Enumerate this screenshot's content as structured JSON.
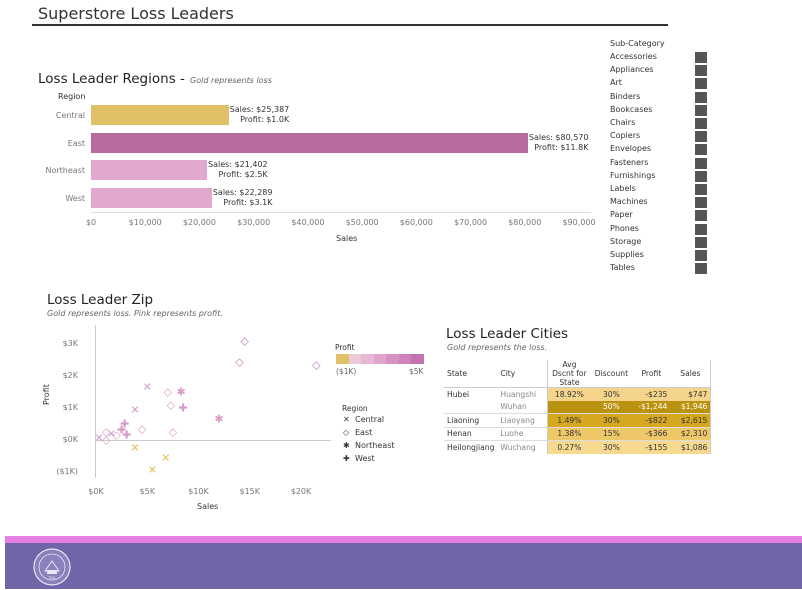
{
  "dashboard": {
    "title": "Superstore Loss Leaders"
  },
  "regions_chart": {
    "title": "Loss Leader Regions -",
    "subtitle": "Gold represents loss",
    "axis_header": "Region",
    "xlabel": "Sales",
    "ticks": [
      "$0",
      "$10,000",
      "$20,000",
      "$30,000",
      "$40,000",
      "$50,000",
      "$60,000",
      "$70,000",
      "$80,000",
      "$90,000"
    ],
    "rows": [
      {
        "region": "Central",
        "sales_label": "Sales: $25,387",
        "profit_label": "Profit: $1.0K"
      },
      {
        "region": "East",
        "sales_label": "Sales: $80,570",
        "profit_label": "Profit: $11.8K"
      },
      {
        "region": "Northeast",
        "sales_label": "Sales: $21,402",
        "profit_label": "Profit: $2.5K"
      },
      {
        "region": "West",
        "sales_label": "Sales: $22,289",
        "profit_label": "Profit: $3.1K"
      }
    ]
  },
  "subcategory_legend": {
    "title": "Sub-Category",
    "items": [
      "Accessories",
      "Appliances",
      "Art",
      "Binders",
      "Bookcases",
      "Chairs",
      "Copiers",
      "Envelopes",
      "Fasteners",
      "Furnishings",
      "Labels",
      "Machines",
      "Paper",
      "Phones",
      "Storage",
      "Supplies",
      "Tables"
    ],
    "swatch_color": "#555555"
  },
  "zip_chart": {
    "title": "Loss Leader Zip",
    "subtitle": "Gold represents loss.  Pink represents profit.",
    "ylabel": "Profit",
    "xlabel": "Sales",
    "yticks": [
      "$3K",
      "$2K",
      "$1K",
      "$0K",
      "($1K)"
    ],
    "xticks": [
      "$0K",
      "$5K",
      "$10K",
      "$15K",
      "$20K"
    ],
    "profit_legend": {
      "title": "Profit",
      "min": "($1K)",
      "max": "$5K"
    },
    "region_legend": {
      "title": "Region",
      "items": [
        {
          "symbol": "✕",
          "label": "Central"
        },
        {
          "symbol": "◇",
          "label": "East"
        },
        {
          "symbol": "✱",
          "label": "Northeast"
        },
        {
          "symbol": "✚",
          "label": "West"
        }
      ]
    }
  },
  "chart_data": [
    {
      "type": "bar",
      "title": "Loss Leader Regions -",
      "subtitle": "Gold represents loss",
      "categories": [
        "Central",
        "East",
        "Northeast",
        "West"
      ],
      "series": [
        {
          "name": "Sales",
          "values": [
            25387,
            80570,
            21402,
            22289
          ]
        },
        {
          "name": "Profit",
          "values": [
            1000,
            11800,
            2500,
            3100
          ]
        }
      ],
      "xlabel": "Sales",
      "ylabel": "Region",
      "xlim": [
        0,
        90000
      ],
      "colors": [
        "#e2c068",
        "#b76a9c",
        "#e1aacc",
        "#e1aacc"
      ]
    },
    {
      "type": "scatter",
      "title": "Loss Leader Zip",
      "subtitle": "Gold represents loss.  Pink represents profit.",
      "xlabel": "Sales",
      "ylabel": "Profit",
      "xlim": [
        0,
        22000
      ],
      "ylim": [
        -1200,
        3400
      ],
      "points": [
        {
          "region": "East",
          "x": 14500,
          "y": 3100,
          "c": "#c678b2"
        },
        {
          "region": "East",
          "x": 14000,
          "y": 2450,
          "c": "#c678b2"
        },
        {
          "region": "East",
          "x": 21500,
          "y": 2350,
          "c": "#c678b2"
        },
        {
          "region": "Central",
          "x": 5000,
          "y": 1650,
          "c": "#d79cc8"
        },
        {
          "region": "East",
          "x": 7000,
          "y": 1500,
          "c": "#d79cc8"
        },
        {
          "region": "Northeast",
          "x": 8300,
          "y": 1500,
          "c": "#d79cc8"
        },
        {
          "region": "East",
          "x": 7300,
          "y": 1100,
          "c": "#d79cc8"
        },
        {
          "region": "West",
          "x": 8500,
          "y": 1000,
          "c": "#d79cc8"
        },
        {
          "region": "Central",
          "x": 3800,
          "y": 950,
          "c": "#d79cc8"
        },
        {
          "region": "Northeast",
          "x": 12000,
          "y": 650,
          "c": "#d79cc8"
        },
        {
          "region": "West",
          "x": 2800,
          "y": 500,
          "c": "#d79cc8"
        },
        {
          "region": "West",
          "x": 2500,
          "y": 300,
          "c": "#d79cc8"
        },
        {
          "region": "East",
          "x": 4500,
          "y": 350,
          "c": "#d79cc8"
        },
        {
          "region": "East",
          "x": 7500,
          "y": 250,
          "c": "#d79cc8"
        },
        {
          "region": "East",
          "x": 1000,
          "y": 250,
          "c": "#d79cc8"
        },
        {
          "region": "Central",
          "x": 1500,
          "y": 200,
          "c": "#d79cc8"
        },
        {
          "region": "East",
          "x": 2000,
          "y": 150,
          "c": "#d79cc8"
        },
        {
          "region": "West",
          "x": 3000,
          "y": 150,
          "c": "#d79cc8"
        },
        {
          "region": "Central",
          "x": 300,
          "y": 50,
          "c": "#d79cc8"
        },
        {
          "region": "East",
          "x": 1000,
          "y": 0,
          "c": "#d79cc8"
        },
        {
          "region": "Central",
          "x": 3800,
          "y": -250,
          "c": "#e2bf55"
        },
        {
          "region": "Central",
          "x": 6800,
          "y": -550,
          "c": "#e2bf55"
        },
        {
          "region": "Central",
          "x": 5500,
          "y": -950,
          "c": "#e2bf55"
        }
      ]
    }
  ],
  "cities_table": {
    "title": "Loss Leader Cities",
    "subtitle": "Gold represents the  loss.",
    "columns": [
      "State",
      "City",
      "Avg Dscnt for State",
      "Discount",
      "Profit",
      "Sales"
    ],
    "rows": [
      {
        "state": "Hubei",
        "city": "Huangshi",
        "avg": "18.92%",
        "discount": "30%",
        "profit": "-$235",
        "sales": "$747",
        "bg": "#f5d58c",
        "fg": "#333"
      },
      {
        "state": "",
        "city": "Wuhan",
        "avg": "",
        "discount": "50%",
        "profit": "-$1,244",
        "sales": "$1,946",
        "bg": "#b99210",
        "fg": "#ffffff"
      },
      {
        "state": "Liaoning",
        "city": "Liaoyang",
        "avg": "1.49%",
        "discount": "30%",
        "profit": "-$822",
        "sales": "$2,615",
        "bg": "#d6a820",
        "fg": "#333"
      },
      {
        "state": "Henan",
        "city": "Luohe",
        "avg": "1.38%",
        "discount": "15%",
        "profit": "-$366",
        "sales": "$2,310",
        "bg": "#eec868",
        "fg": "#333"
      },
      {
        "state": "Heilongjiang",
        "city": "Wuchang",
        "avg": "0.27%",
        "discount": "30%",
        "profit": "-$155",
        "sales": "$1,086",
        "bg": "#f7da90",
        "fg": "#333"
      }
    ]
  },
  "footer": {
    "logo": "university-seal-icon"
  }
}
